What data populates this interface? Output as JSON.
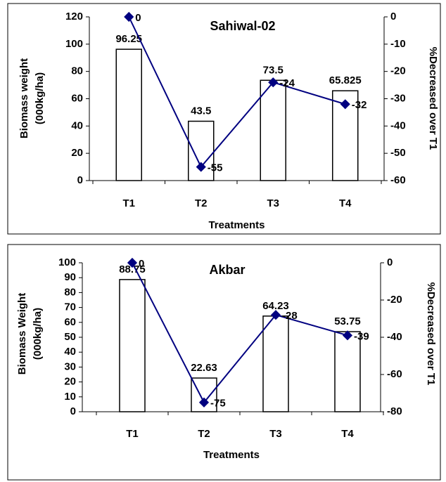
{
  "chart_data": [
    {
      "type": "bar",
      "title": "Sahiwal-02",
      "categories": [
        "T1",
        "T2",
        "T3",
        "T4"
      ],
      "x_label": "Treatments",
      "y_label": [
        "Biomass weight",
        "(000kg/ha)"
      ],
      "y2_label": "%Decreased over T1",
      "ylim": [
        0,
        120
      ],
      "yticks": [
        0,
        20,
        40,
        60,
        80,
        100,
        120
      ],
      "y2lim": [
        -60,
        0
      ],
      "y2ticks": [
        -60,
        -50,
        -40,
        -30,
        -20,
        -10,
        0
      ],
      "grid": false,
      "series": [
        {
          "type": "bar",
          "color": "#ffffff",
          "values": [
            96.25,
            43.5,
            73.5,
            65.825
          ]
        },
        {
          "type": "line",
          "axis": "y2",
          "color": "#000080",
          "values": [
            0,
            -55,
            -24,
            -32
          ]
        }
      ]
    },
    {
      "type": "bar",
      "title": "Akbar",
      "categories": [
        "T1",
        "T2",
        "T3",
        "T4"
      ],
      "x_label": "Treatments",
      "y_label": [
        "Biomass Weight",
        "(000kg/ha)"
      ],
      "y2_label": "%Decreased over T1",
      "ylim": [
        0,
        100
      ],
      "yticks": [
        0,
        10,
        20,
        30,
        40,
        50,
        60,
        70,
        80,
        90,
        100
      ],
      "y2lim": [
        -80,
        0
      ],
      "y2ticks": [
        -80,
        -60,
        -40,
        -20,
        0
      ],
      "grid": false,
      "series": [
        {
          "type": "bar",
          "color": "#ffffff",
          "values": [
            88.75,
            22.63,
            64.23,
            53.75
          ]
        },
        {
          "type": "line",
          "axis": "y2",
          "color": "#000080",
          "values": [
            0,
            -75,
            -28,
            -39
          ]
        }
      ]
    }
  ]
}
